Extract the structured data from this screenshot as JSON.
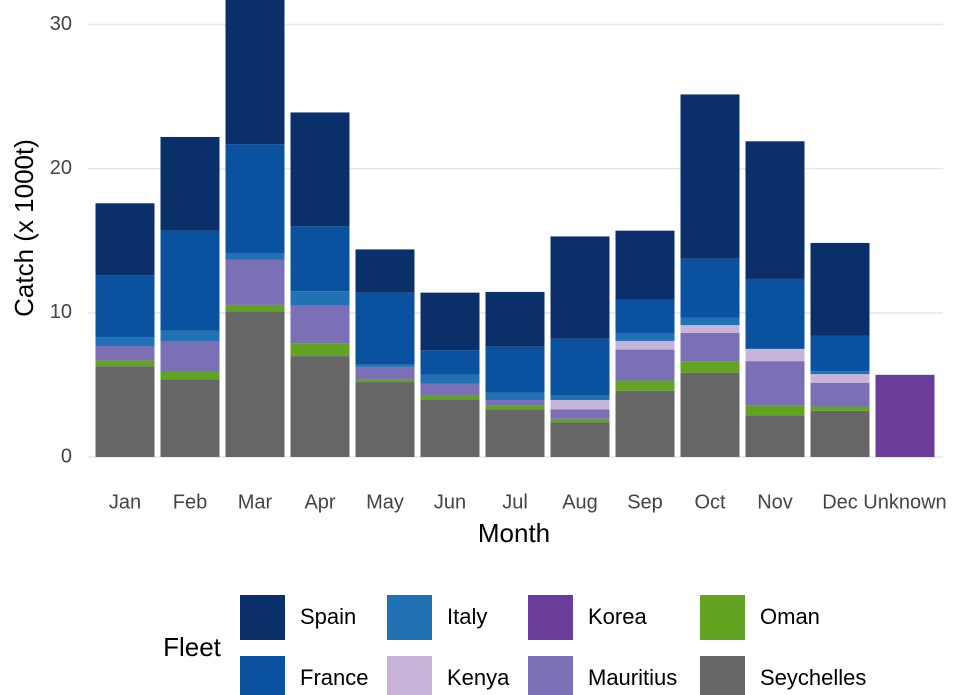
{
  "chart_data": {
    "type": "bar",
    "stacked": true,
    "x_label": "Month",
    "y_label": "Catch (x 1000t)",
    "legend_title": "Fleet",
    "legend_position": "bottom",
    "grid": true,
    "categories": [
      "Jan",
      "Feb",
      "Mar",
      "Apr",
      "May",
      "Jun",
      "Jul",
      "Aug",
      "Sep",
      "Oct",
      "Nov",
      "Dec",
      "Unknown"
    ],
    "ylim": [
      0,
      31.7
    ],
    "yticks": [
      0,
      10,
      20,
      30
    ],
    "series": [
      {
        "name": "Spain",
        "color": "#0b3069",
        "values": [
          5.0,
          6.5,
          10.0,
          7.9,
          3.0,
          4.0,
          3.8,
          7.1,
          4.8,
          11.4,
          9.55,
          6.45,
          0
        ]
      },
      {
        "name": "France",
        "color": "#0a52a0",
        "values": [
          4.3,
          6.95,
          7.6,
          4.5,
          5.0,
          1.7,
          3.2,
          3.95,
          2.35,
          4.1,
          4.85,
          2.45,
          0
        ]
      },
      {
        "name": "Italy",
        "color": "#2171b5",
        "values": [
          0.6,
          0.75,
          0.4,
          1.0,
          0.15,
          0.6,
          0.5,
          0.3,
          0.5,
          0.5,
          0,
          0.2,
          0
        ]
      },
      {
        "name": "Kenya",
        "color": "#c8b4d8",
        "values": [
          0,
          0,
          0,
          0,
          0,
          0,
          0,
          0.65,
          0.6,
          0.55,
          0.85,
          0.6,
          0
        ]
      },
      {
        "name": "Korea",
        "color": "#6a3d9a",
        "values": [
          0,
          0,
          0,
          0,
          0,
          0,
          0,
          0,
          0,
          0,
          0,
          0,
          5.7
        ]
      },
      {
        "name": "Mauritius",
        "color": "#7b6fb5",
        "values": [
          1.0,
          2.1,
          3.15,
          2.6,
          0.9,
          0.8,
          0.35,
          0.65,
          2.15,
          2.0,
          3.1,
          1.65,
          0
        ]
      },
      {
        "name": "Oman",
        "color": "#63a322",
        "values": [
          0.4,
          0.5,
          0.45,
          0.9,
          0.15,
          0.3,
          0.3,
          0.25,
          0.7,
          0.75,
          0.65,
          0.3,
          0
        ]
      },
      {
        "name": "Seychelles",
        "color": "#666666",
        "values": [
          6.3,
          5.4,
          10.1,
          7.0,
          5.2,
          4.0,
          3.3,
          2.4,
          4.6,
          5.85,
          2.9,
          3.2,
          0
        ]
      }
    ]
  }
}
